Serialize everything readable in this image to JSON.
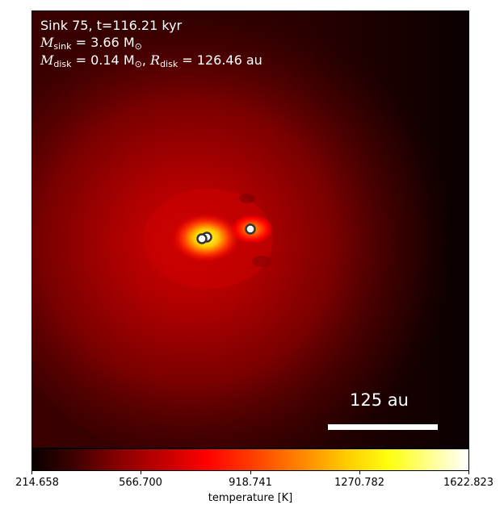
{
  "overlay": {
    "line1": "Sink 75, t=116.21 kyr",
    "msink_sym": "M",
    "msink_sub": "sink",
    "msink_val": " = 3.66 M",
    "msink_unit_sub": "⊙",
    "mdisk_sym": "M",
    "mdisk_sub": "disk",
    "mdisk_val": " = 0.14 M",
    "mdisk_unit_sub": "⊙",
    "rdisk_sep": ", ",
    "rdisk_sym": "R",
    "rdisk_sub": "disk",
    "rdisk_val": " = 126.46 au"
  },
  "scale_bar": {
    "label": "125 au"
  },
  "colorbar": {
    "label": "temperature [K]",
    "ticks": [
      "214.658",
      "566.700",
      "918.741",
      "1270.782",
      "1622.823"
    ],
    "colormap": "hot"
  },
  "colors": {
    "sink_marker_fill": "#ffffff",
    "sink_marker_edge": "#333333"
  },
  "sinks": {
    "count": 3
  }
}
